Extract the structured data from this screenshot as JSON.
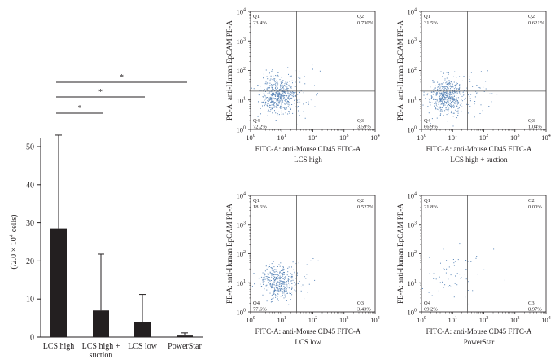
{
  "chart_data": [
    {
      "type": "bar",
      "title": "",
      "ylabel": "(/2.0 × 10^4 cells)",
      "ylabel_parts": {
        "pre": "(/2.0 × 10",
        "exp": "4",
        "post": " cells)"
      },
      "xlabel": "",
      "ylim": [
        0,
        53
      ],
      "yticks": [
        "0",
        "10",
        "20",
        "30",
        "40",
        "50"
      ],
      "categories": [
        [
          "LCS high"
        ],
        [
          "LCS high +",
          "suction"
        ],
        [
          "LCS low"
        ],
        [
          "PowerStar"
        ]
      ],
      "values": [
        28.5,
        7.0,
        4.0,
        0.4
      ],
      "error_upper": [
        53.0,
        21.8,
        11.2,
        1.1
      ],
      "bar_color": "#231f20",
      "significance": [
        {
          "from": 0,
          "to": 1,
          "label": "*"
        },
        {
          "from": 0,
          "to": 2,
          "label": "*"
        },
        {
          "from": 0,
          "to": 3,
          "label": "*"
        }
      ]
    },
    {
      "type": "scatter",
      "panel": "LCS high",
      "title": "LCS high",
      "xlabel": "FITC-A: anti-Mouse CD45 FITC-A",
      "ylabel": "PE-A: anti-Human EpCAM PE-A",
      "scale": "log",
      "xlim": [
        1,
        10000
      ],
      "ylim": [
        1,
        10000
      ],
      "gate": [
        30,
        20
      ],
      "quadrants": {
        "tl": "Q1",
        "tr": "Q2",
        "bl": "Q4",
        "br": "Q3"
      },
      "quadrant_values": {
        "tl": "23.4%",
        "tr": "0.730%",
        "bl": "72.2%",
        "br": "3.59%"
      },
      "cluster": {
        "center": [
          7,
          15
        ],
        "count": 560,
        "spread": 0.28
      },
      "dot_color": "#5a86b8"
    },
    {
      "type": "scatter",
      "panel": "LCS high + suction",
      "title": "LCS high + suction",
      "xlabel": "FITC-A: anti-Mouse CD45 FITC-A",
      "ylabel": "PE-A: anti-Human EpCAM PE-A",
      "scale": "log",
      "xlim": [
        1,
        10000
      ],
      "ylim": [
        1,
        10000
      ],
      "gate": [
        30,
        20
      ],
      "quadrants": {
        "tl": "Q1",
        "tr": "Q2",
        "bl": "Q4",
        "br": "Q3"
      },
      "quadrant_values": {
        "tl": "31.5%",
        "tr": "0.621%",
        "bl": "66.9%",
        "br": "1.04%"
      },
      "cluster": {
        "center": [
          6,
          14
        ],
        "count": 520,
        "spread": 0.28
      },
      "dot_color": "#5a86b8"
    },
    {
      "type": "scatter",
      "panel": "LCS low",
      "title": "LCS low",
      "xlabel": "FITC-A: anti-Mouse CD45 FITC-A",
      "ylabel": "PE-A: anti-Human EpCAM PE-A",
      "scale": "log",
      "xlim": [
        1,
        10000
      ],
      "ylim": [
        1,
        10000
      ],
      "gate": [
        30,
        20
      ],
      "quadrants": {
        "tl": "Q1",
        "tr": "Q2",
        "bl": "Q4",
        "br": "Q3"
      },
      "quadrant_values": {
        "tl": "18.6%",
        "tr": "0.527%",
        "bl": "77.6%",
        "br": "3.43%"
      },
      "cluster": {
        "center": [
          7,
          11
        ],
        "count": 380,
        "spread": 0.27
      },
      "dot_color": "#5a86b8"
    },
    {
      "type": "scatter",
      "panel": "PowerStar",
      "title": "PowerStar",
      "xlabel": "FITC-A: anti-Mouse CD45 FITC-A",
      "ylabel": "PE-A: anti-Human EpCAM PE-A",
      "scale": "log",
      "xlim": [
        1,
        10000
      ],
      "ylim": [
        1,
        10000
      ],
      "gate": [
        30,
        20
      ],
      "quadrants": {
        "tl": "Q1",
        "tr": "C2",
        "bl": "Q4",
        "br": "C3"
      },
      "quadrant_values": {
        "tl": "21.8%",
        "tr": "0.00%",
        "bl": "69.2%",
        "br": "8.97%"
      },
      "cluster": {
        "center": [
          8,
          12
        ],
        "count": 60,
        "spread": 0.45
      },
      "dot_color": "#5a86b8"
    }
  ],
  "flow_ticks": {
    "base": "10",
    "exponents": [
      "0",
      "1",
      "2",
      "3",
      "4"
    ]
  }
}
